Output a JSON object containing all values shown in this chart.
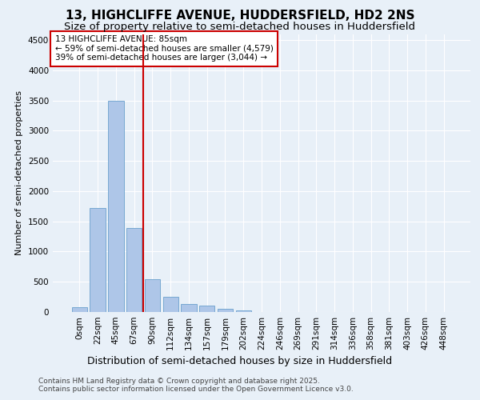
{
  "title1": "13, HIGHCLIFFE AVENUE, HUDDERSFIELD, HD2 2NS",
  "title2": "Size of property relative to semi-detached houses in Huddersfield",
  "xlabel": "Distribution of semi-detached houses by size in Huddersfield",
  "ylabel": "Number of semi-detached properties",
  "footer1": "Contains HM Land Registry data © Crown copyright and database right 2025.",
  "footer2": "Contains public sector information licensed under the Open Government Licence v3.0.",
  "annotation_title": "13 HIGHCLIFFE AVENUE: 85sqm",
  "annotation_line1": "← 59% of semi-detached houses are smaller (4,579)",
  "annotation_line2": "39% of semi-detached houses are larger (3,044) →",
  "bar_values": [
    80,
    1720,
    3500,
    1390,
    540,
    245,
    130,
    100,
    50,
    30,
    5,
    0,
    0,
    0,
    0,
    0,
    0,
    0,
    0,
    0,
    0
  ],
  "bar_labels": [
    "0sqm",
    "22sqm",
    "45sqm",
    "67sqm",
    "90sqm",
    "112sqm",
    "134sqm",
    "157sqm",
    "179sqm",
    "202sqm",
    "224sqm",
    "246sqm",
    "269sqm",
    "291sqm",
    "314sqm",
    "336sqm",
    "358sqm",
    "381sqm",
    "403sqm",
    "426sqm",
    "448sqm"
  ],
  "bar_color": "#aec6e8",
  "bar_edge_color": "#6aa0cd",
  "vline_color": "#cc0000",
  "ylim": [
    0,
    4600
  ],
  "yticks": [
    0,
    500,
    1000,
    1500,
    2000,
    2500,
    3000,
    3500,
    4000,
    4500
  ],
  "bg_color": "#e8f0f8",
  "grid_color": "#ffffff",
  "annotation_box_color": "#ffffff",
  "annotation_border_color": "#cc0000",
  "title1_fontsize": 11,
  "title2_fontsize": 9.5,
  "xlabel_fontsize": 9,
  "ylabel_fontsize": 8,
  "tick_fontsize": 7.5,
  "annotation_fontsize": 7.5,
  "footer_fontsize": 6.5
}
